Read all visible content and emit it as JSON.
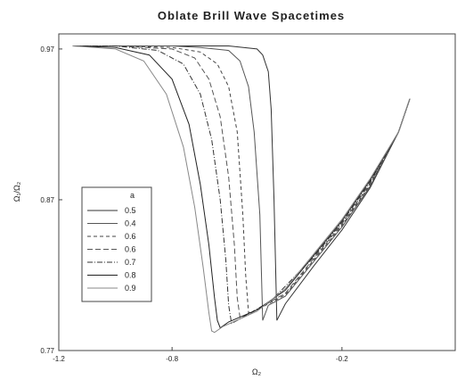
{
  "chart_data": {
    "type": "line",
    "title": "Oblate Brill Wave Spacetimes",
    "xlabel": "Ω₂",
    "ylabel": "Ω₁/Ω₂",
    "xlim": [
      -1.2,
      0.2
    ],
    "ylim": [
      0.77,
      0.98
    ],
    "x_ticks": [
      -1.2,
      -0.8,
      -0.2
    ],
    "x_tick_labels": [
      "-1.2",
      "-0.8",
      "-0.2"
    ],
    "y_ticks": [
      0.77,
      0.87,
      0.97
    ],
    "y_tick_labels": [
      "0.77",
      "0.87",
      "0.97"
    ],
    "grid": false,
    "legend": {
      "title": "a",
      "placement": "lower-left"
    },
    "series": [
      {
        "name": "0.5",
        "color": "#333333",
        "dash": "",
        "x": [
          -1.15,
          -1.0,
          -0.8,
          -0.6,
          -0.5,
          -0.48,
          -0.46,
          -0.45,
          -0.44,
          -0.43,
          -0.4,
          -0.3,
          -0.2,
          -0.1,
          0.0,
          0.04
        ],
        "y": [
          0.972,
          0.972,
          0.972,
          0.972,
          0.97,
          0.966,
          0.955,
          0.93,
          0.87,
          0.79,
          0.801,
          0.826,
          0.85,
          0.878,
          0.915,
          0.937
        ]
      },
      {
        "name": "0.4",
        "color": "#555555",
        "dash": "",
        "x": [
          -1.15,
          -1.0,
          -0.8,
          -0.7,
          -0.6,
          -0.56,
          -0.53,
          -0.51,
          -0.49,
          -0.48,
          -0.46,
          -0.4,
          -0.3,
          -0.2,
          -0.1,
          0.0,
          0.04
        ],
        "y": [
          0.972,
          0.972,
          0.972,
          0.971,
          0.969,
          0.962,
          0.945,
          0.915,
          0.86,
          0.79,
          0.8,
          0.806,
          0.829,
          0.852,
          0.879,
          0.915,
          0.937
        ]
      },
      {
        "name": "0.6",
        "color": "#444444",
        "dash": "4,3",
        "x": [
          -1.15,
          -1.0,
          -0.8,
          -0.7,
          -0.64,
          -0.6,
          -0.57,
          -0.55,
          -0.54,
          -0.53,
          -0.5,
          -0.4,
          -0.3,
          -0.2,
          -0.1,
          0.0,
          0.04
        ],
        "y": [
          0.972,
          0.972,
          0.971,
          0.968,
          0.96,
          0.945,
          0.915,
          0.86,
          0.82,
          0.795,
          0.797,
          0.807,
          0.83,
          0.853,
          0.88,
          0.915,
          0.937
        ]
      },
      {
        "name": "0.6",
        "color": "#555555",
        "dash": "6,3",
        "x": [
          -1.15,
          -1.0,
          -0.8,
          -0.72,
          -0.67,
          -0.63,
          -0.6,
          -0.58,
          -0.57,
          -0.56,
          -0.52,
          -0.4,
          -0.3,
          -0.2,
          -0.1,
          0.0,
          0.04
        ],
        "y": [
          0.972,
          0.972,
          0.97,
          0.964,
          0.95,
          0.925,
          0.885,
          0.84,
          0.805,
          0.792,
          0.795,
          0.808,
          0.831,
          0.854,
          0.881,
          0.915,
          0.937
        ]
      },
      {
        "name": "0.7",
        "color": "#333333",
        "dash": "6,2,1,2",
        "x": [
          -1.15,
          -1.0,
          -0.85,
          -0.76,
          -0.7,
          -0.66,
          -0.63,
          -0.61,
          -0.6,
          -0.59,
          -0.55,
          -0.45,
          -0.3,
          -0.2,
          -0.1,
          0.0,
          0.04
        ],
        "y": [
          0.972,
          0.972,
          0.969,
          0.96,
          0.94,
          0.91,
          0.87,
          0.83,
          0.8,
          0.788,
          0.792,
          0.803,
          0.832,
          0.855,
          0.882,
          0.915,
          0.937
        ]
      },
      {
        "name": "0.8",
        "color": "#222222",
        "dash": "",
        "x": [
          -1.15,
          -1.0,
          -0.88,
          -0.8,
          -0.74,
          -0.7,
          -0.67,
          -0.65,
          -0.64,
          -0.63,
          -0.6,
          -0.5,
          -0.4,
          -0.3,
          -0.2,
          -0.1,
          0.0,
          0.04
        ],
        "y": [
          0.972,
          0.971,
          0.966,
          0.95,
          0.92,
          0.88,
          0.84,
          0.805,
          0.79,
          0.785,
          0.789,
          0.797,
          0.81,
          0.833,
          0.856,
          0.883,
          0.915,
          0.937
        ]
      },
      {
        "name": "0.9",
        "color": "#888888",
        "dash": "",
        "x": [
          -1.15,
          -1.0,
          -0.9,
          -0.82,
          -0.76,
          -0.72,
          -0.69,
          -0.67,
          -0.66,
          -0.65,
          -0.62,
          -0.5,
          -0.4,
          -0.3,
          -0.2,
          -0.1,
          0.0,
          0.04
        ],
        "y": [
          0.972,
          0.97,
          0.962,
          0.94,
          0.905,
          0.865,
          0.825,
          0.795,
          0.783,
          0.782,
          0.786,
          0.796,
          0.811,
          0.834,
          0.857,
          0.884,
          0.915,
          0.937
        ]
      }
    ]
  }
}
